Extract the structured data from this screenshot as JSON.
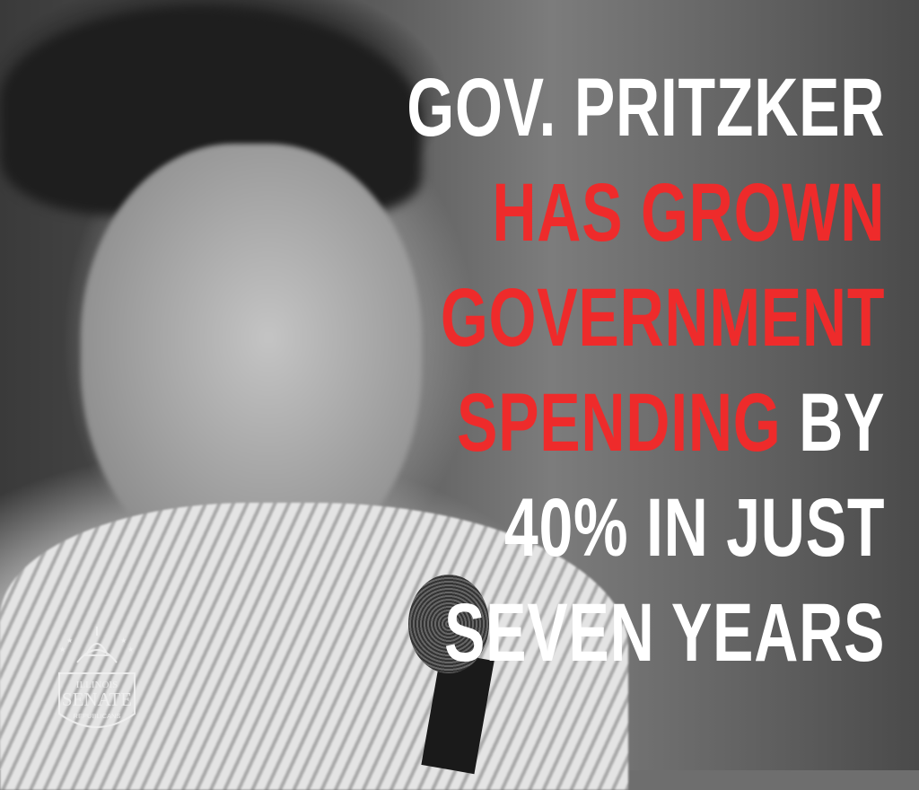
{
  "headline": {
    "lines": [
      {
        "segments": [
          {
            "text": "GOV. PRITZKER",
            "color": "#ffffff"
          }
        ]
      },
      {
        "segments": [
          {
            "text": "HAS GROWN",
            "color": "#ee2b2b"
          }
        ]
      },
      {
        "segments": [
          {
            "text": "GOVERNMENT",
            "color": "#ee2b2b"
          }
        ]
      },
      {
        "segments": [
          {
            "text": "SPENDING",
            "color": "#ee2b2b"
          },
          {
            "text": " BY",
            "color": "#ffffff"
          }
        ]
      },
      {
        "segments": [
          {
            "text": "40% IN JUST",
            "color": "#ffffff"
          }
        ]
      },
      {
        "segments": [
          {
            "text": "SEVEN YEARS",
            "color": "#ffffff"
          }
        ]
      }
    ]
  },
  "logo": {
    "line1": "ILLINOIS",
    "line2": "SENATE",
    "line3": "REPUBLICANS",
    "icon": "capitol-dome-icon"
  },
  "photo": {
    "subject": "portrait-photo",
    "style": "grayscale"
  }
}
